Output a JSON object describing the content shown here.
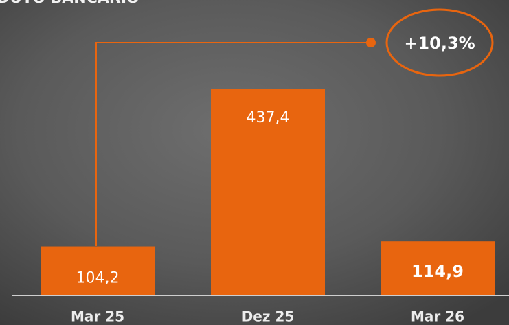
{
  "chart_data": {
    "type": "bar",
    "title": "DUTO BANCÁRIO",
    "categories": [
      "Mar 25",
      "Dez 25",
      "Mar 26"
    ],
    "values": [
      104.2,
      437.4,
      114.9
    ],
    "value_labels": [
      "104,2",
      "437,4",
      "114,9"
    ],
    "color": "#e8650f",
    "annotation": "+10,3%"
  }
}
